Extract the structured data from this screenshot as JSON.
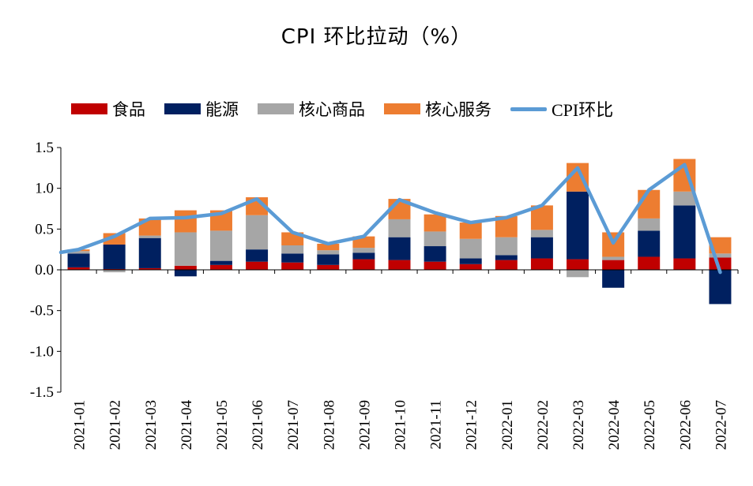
{
  "chart_data": {
    "type": "bar",
    "stacked": true,
    "title": "CPI 环比拉动（%）",
    "categories": [
      "2021-01",
      "2021-02",
      "2021-03",
      "2021-04",
      "2021-05",
      "2021-06",
      "2021-07",
      "2021-08",
      "2021-09",
      "2021-10",
      "2021-11",
      "2021-12",
      "2022-01",
      "2022-02",
      "2022-03",
      "2022-04",
      "2022-05",
      "2022-06",
      "2022-07"
    ],
    "ylim": [
      -1.5,
      1.5
    ],
    "yticks": [
      "1.5",
      "1.0",
      "0.5",
      "0.0",
      "-0.5",
      "-1.0",
      "-1.5"
    ],
    "ytick_values": [
      1.5,
      1.0,
      0.5,
      0.0,
      -0.5,
      -1.0,
      -1.5
    ],
    "xlabel": "",
    "ylabel": "",
    "legend_position": "top-left",
    "series": [
      {
        "name": "食品",
        "color": "#C00000",
        "values": [
          0.03,
          0.01,
          0.02,
          0.05,
          0.06,
          0.1,
          0.09,
          0.06,
          0.13,
          0.12,
          0.1,
          0.07,
          0.12,
          0.14,
          0.13,
          0.12,
          0.16,
          0.14,
          0.15
        ]
      },
      {
        "name": "能源",
        "color": "#002060",
        "values": [
          0.17,
          0.3,
          0.37,
          -0.08,
          0.05,
          0.15,
          0.11,
          0.13,
          0.08,
          0.28,
          0.19,
          0.07,
          0.06,
          0.26,
          0.83,
          -0.22,
          0.32,
          0.65,
          -0.42
        ]
      },
      {
        "name": "核心商品",
        "color": "#A6A6A6",
        "values": [
          0.03,
          -0.03,
          0.03,
          0.41,
          0.37,
          0.42,
          0.1,
          0.05,
          0.06,
          0.22,
          0.18,
          0.24,
          0.22,
          0.09,
          -0.09,
          0.04,
          0.15,
          0.17,
          0.05
        ]
      },
      {
        "name": "核心服务",
        "color": "#ED7D31",
        "values": [
          0.02,
          0.14,
          0.21,
          0.27,
          0.25,
          0.22,
          0.16,
          0.08,
          0.14,
          0.25,
          0.21,
          0.2,
          0.26,
          0.3,
          0.35,
          0.3,
          0.35,
          0.4,
          0.2
        ]
      }
    ],
    "line": {
      "name": "CPI环比",
      "color": "#5B9BD5",
      "values": [
        0.25,
        0.41,
        0.63,
        0.64,
        0.69,
        0.87,
        0.46,
        0.32,
        0.41,
        0.86,
        0.7,
        0.58,
        0.64,
        0.79,
        1.25,
        0.33,
        0.98,
        1.29,
        -0.03
      ]
    }
  }
}
